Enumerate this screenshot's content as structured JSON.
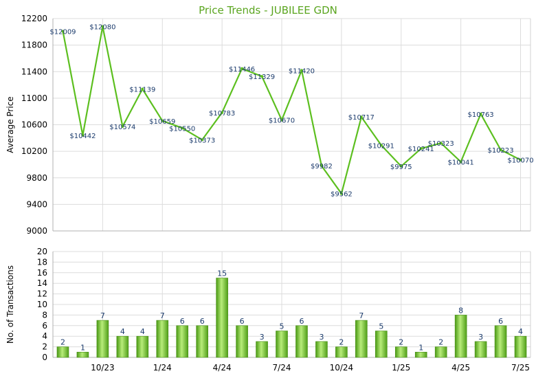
{
  "chart_data": [
    {
      "type": "line",
      "title": "Price Trends - JUBILEE GDN",
      "ylabel": "Average Price",
      "ylim": [
        9000,
        12200
      ],
      "yticks": [
        9000,
        9400,
        9800,
        10200,
        10600,
        11000,
        11400,
        11800,
        12200
      ],
      "grid": true,
      "line_color": "#5cbf1f",
      "values": [
        12009,
        10442,
        12080,
        10574,
        11139,
        10659,
        10550,
        10373,
        10783,
        11446,
        11329,
        10670,
        11420,
        9982,
        9562,
        10717,
        10291,
        9975,
        10241,
        10323,
        10041,
        10763,
        10223,
        10070
      ],
      "labels": [
        "$12009",
        "$10442",
        "$12080",
        "$10574",
        "$11139",
        "$10659",
        "$10550",
        "$10373",
        "$10783",
        "$11446",
        "$11329",
        "$10670",
        "$11420",
        "$9982",
        "$9562",
        "$10717",
        "$10291",
        "$9975",
        "$10241",
        "$10323",
        "$10041",
        "$10763",
        "$10223",
        "$10070"
      ]
    },
    {
      "type": "bar",
      "ylabel": "No. of Transactions",
      "ylim": [
        0,
        20
      ],
      "yticks": [
        0,
        2,
        4,
        6,
        8,
        10,
        12,
        14,
        16,
        18,
        20
      ],
      "grid": true,
      "bar_color": "#6cc02a",
      "values": [
        2,
        1,
        7,
        4,
        4,
        7,
        6,
        6,
        15,
        6,
        3,
        5,
        6,
        3,
        2,
        7,
        5,
        2,
        1,
        2,
        8,
        3,
        6,
        4
      ],
      "xtick_labels": [
        "10/23",
        "1/24",
        "4/24",
        "7/24",
        "10/24",
        "1/25",
        "4/25",
        "7/25"
      ],
      "xtick_indices": [
        2,
        5,
        8,
        11,
        14,
        17,
        20,
        23
      ]
    }
  ]
}
